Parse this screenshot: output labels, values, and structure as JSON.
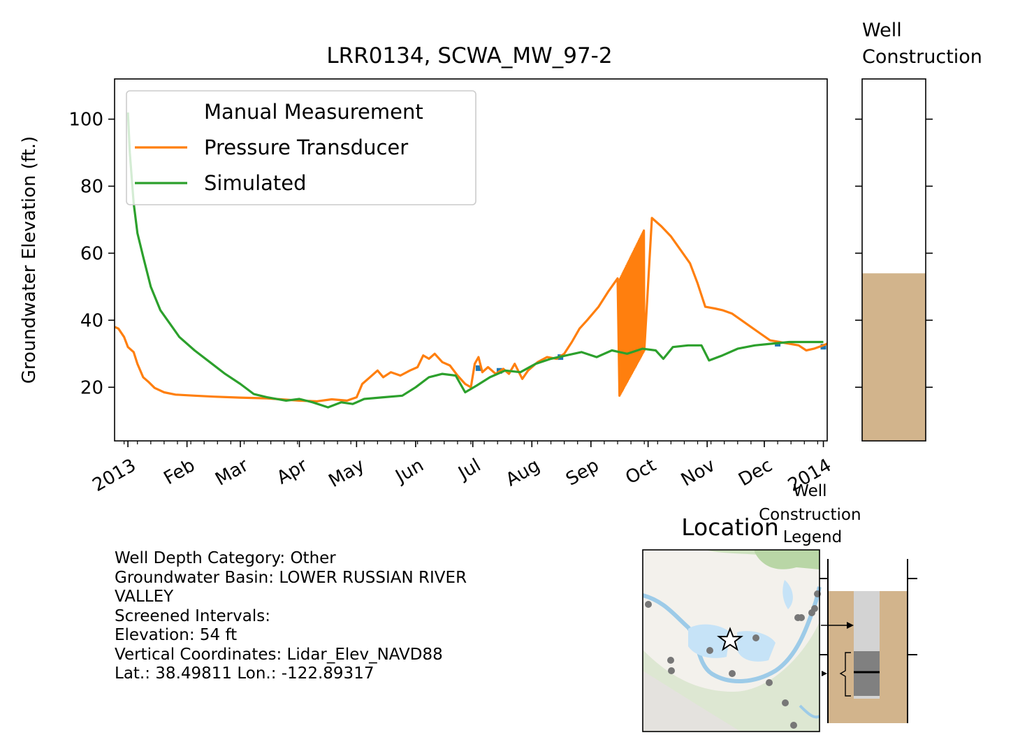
{
  "chart_data": {
    "type": "line",
    "title": "LRR0134, SCWA_MW_97-2",
    "ylabel": "Groundwater Elevation (ft.)",
    "ylim": [
      4,
      112
    ],
    "yticks": [
      20,
      40,
      60,
      80,
      100
    ],
    "xlim": [
      "2012-12-25",
      "2014-01-03"
    ],
    "x_tick_labels": [
      {
        "date": "2013-01-01",
        "label": "2013"
      },
      {
        "date": "2013-02-01",
        "label": "Feb"
      },
      {
        "date": "2013-03-01",
        "label": "Mar"
      },
      {
        "date": "2013-04-01",
        "label": "Apr"
      },
      {
        "date": "2013-05-01",
        "label": "May"
      },
      {
        "date": "2013-06-01",
        "label": "Jun"
      },
      {
        "date": "2013-07-01",
        "label": "Jul"
      },
      {
        "date": "2013-08-01",
        "label": "Aug"
      },
      {
        "date": "2013-09-01",
        "label": "Sep"
      },
      {
        "date": "2013-10-01",
        "label": "Oct"
      },
      {
        "date": "2013-11-01",
        "label": "Nov"
      },
      {
        "date": "2013-12-01",
        "label": "Dec"
      },
      {
        "date": "2014-01-01",
        "label": "2014"
      }
    ],
    "legend_location": "upper-left",
    "series": [
      {
        "name": "Manual Measurement",
        "kind": "markers",
        "color": "#1f77b4",
        "points": [
          [
            "2013-07-04",
            25.7
          ],
          [
            "2013-07-15",
            24.9
          ],
          [
            "2013-08-16",
            29.0
          ],
          [
            "2013-09-28",
            32.8
          ],
          [
            "2013-12-08",
            33.0
          ],
          [
            "2014-01-01",
            32.1
          ]
        ]
      },
      {
        "name": "Pressure Transducer",
        "kind": "line",
        "color": "#ff7f0e",
        "points": [
          [
            "2012-12-25",
            38.0
          ],
          [
            "2012-12-27",
            37.5
          ],
          [
            "2012-12-30",
            35.0
          ],
          [
            "2013-01-01",
            32.0
          ],
          [
            "2013-01-04",
            30.5
          ],
          [
            "2013-01-06",
            27.0
          ],
          [
            "2013-01-09",
            23.0
          ],
          [
            "2013-01-12",
            21.5
          ],
          [
            "2013-01-15",
            19.8
          ],
          [
            "2013-01-20",
            18.5
          ],
          [
            "2013-01-26",
            17.8
          ],
          [
            "2013-02-05",
            17.5
          ],
          [
            "2013-02-15",
            17.2
          ],
          [
            "2013-03-01",
            16.9
          ],
          [
            "2013-03-15",
            16.7
          ],
          [
            "2013-04-01",
            16.0
          ],
          [
            "2013-04-10",
            15.8
          ],
          [
            "2013-04-18",
            16.4
          ],
          [
            "2013-04-26",
            16.0
          ],
          [
            "2013-05-01",
            17.0
          ],
          [
            "2013-05-04",
            21.0
          ],
          [
            "2013-05-08",
            23.0
          ],
          [
            "2013-05-12",
            25.0
          ],
          [
            "2013-05-15",
            23.0
          ],
          [
            "2013-05-19",
            24.5
          ],
          [
            "2013-05-24",
            23.5
          ],
          [
            "2013-05-29",
            25.0
          ],
          [
            "2013-06-02",
            26.0
          ],
          [
            "2013-06-05",
            29.5
          ],
          [
            "2013-06-08",
            28.5
          ],
          [
            "2013-06-11",
            30.0
          ],
          [
            "2013-06-15",
            27.5
          ],
          [
            "2013-06-19",
            26.5
          ],
          [
            "2013-06-23",
            23.5
          ],
          [
            "2013-06-27",
            21.0
          ],
          [
            "2013-06-30",
            20.0
          ],
          [
            "2013-07-02",
            27.0
          ],
          [
            "2013-07-04",
            29.0
          ],
          [
            "2013-07-06",
            24.5
          ],
          [
            "2013-07-09",
            26.0
          ],
          [
            "2013-07-13",
            24.0
          ],
          [
            "2013-07-17",
            25.5
          ],
          [
            "2013-07-20",
            24.0
          ],
          [
            "2013-07-23",
            27.0
          ],
          [
            "2013-07-27",
            22.5
          ],
          [
            "2013-07-30",
            25.0
          ],
          [
            "2013-08-04",
            27.5
          ],
          [
            "2013-08-09",
            29.0
          ],
          [
            "2013-08-14",
            28.5
          ],
          [
            "2013-08-18",
            30.0
          ],
          [
            "2013-08-22",
            33.5
          ],
          [
            "2013-08-26",
            37.5
          ],
          [
            "2013-08-30",
            40.0
          ],
          [
            "2013-09-05",
            44.0
          ],
          [
            "2013-09-10",
            48.5
          ],
          [
            "2013-09-15",
            52.5
          ],
          [
            "2013-09-18",
            55.0
          ],
          [
            "2013-09-28",
            74.0
          ],
          [
            "2013-10-03",
            70.5
          ],
          [
            "2013-10-08",
            68.0
          ],
          [
            "2013-10-13",
            65.0
          ],
          [
            "2013-10-18",
            61.0
          ],
          [
            "2013-10-23",
            57.0
          ],
          [
            "2013-10-27",
            51.0
          ],
          [
            "2013-10-31",
            44.0
          ],
          [
            "2013-11-05",
            43.5
          ],
          [
            "2013-11-09",
            43.0
          ],
          [
            "2013-11-14",
            42.0
          ],
          [
            "2013-11-19",
            40.0
          ],
          [
            "2013-11-24",
            38.0
          ],
          [
            "2013-11-29",
            36.0
          ],
          [
            "2013-12-04",
            34.0
          ],
          [
            "2013-12-09",
            33.5
          ],
          [
            "2013-12-14",
            33.0
          ],
          [
            "2013-12-19",
            32.5
          ],
          [
            "2013-12-23",
            31.0
          ],
          [
            "2013-12-27",
            31.5
          ],
          [
            "2014-01-01",
            32.5
          ],
          [
            "2014-01-03",
            33.0
          ]
        ],
        "oscillation": {
          "start": "2013-09-16",
          "end": "2013-09-29",
          "low_start": 17.5,
          "low_end": 31.0,
          "high_start": 52.0,
          "high_end": 67.0,
          "note": "rapid oscillation segment"
        }
      },
      {
        "name": "Simulated",
        "kind": "line",
        "color": "#2ca02c",
        "points": [
          [
            "2013-01-01",
            102.0
          ],
          [
            "2013-01-02",
            90.0
          ],
          [
            "2013-01-04",
            75.0
          ],
          [
            "2013-01-06",
            66.0
          ],
          [
            "2013-01-09",
            59.0
          ],
          [
            "2013-01-13",
            50.0
          ],
          [
            "2013-01-18",
            43.0
          ],
          [
            "2013-01-23",
            39.0
          ],
          [
            "2013-01-28",
            35.0
          ],
          [
            "2013-02-05",
            31.0
          ],
          [
            "2013-02-13",
            27.5
          ],
          [
            "2013-02-21",
            24.0
          ],
          [
            "2013-03-01",
            21.0
          ],
          [
            "2013-03-08",
            18.0
          ],
          [
            "2013-03-15",
            17.0
          ],
          [
            "2013-03-25",
            16.0
          ],
          [
            "2013-04-01",
            16.5
          ],
          [
            "2013-04-08",
            15.5
          ],
          [
            "2013-04-16",
            14.0
          ],
          [
            "2013-04-23",
            15.5
          ],
          [
            "2013-04-29",
            15.0
          ],
          [
            "2013-05-05",
            16.5
          ],
          [
            "2013-05-15",
            17.0
          ],
          [
            "2013-05-25",
            17.5
          ],
          [
            "2013-06-01",
            20.0
          ],
          [
            "2013-06-08",
            23.0
          ],
          [
            "2013-06-15",
            24.0
          ],
          [
            "2013-06-22",
            23.5
          ],
          [
            "2013-06-27",
            18.5
          ],
          [
            "2013-07-03",
            20.5
          ],
          [
            "2013-07-10",
            23.0
          ],
          [
            "2013-07-18",
            25.0
          ],
          [
            "2013-07-26",
            24.5
          ],
          [
            "2013-08-03",
            27.0
          ],
          [
            "2013-08-11",
            28.5
          ],
          [
            "2013-08-19",
            29.5
          ],
          [
            "2013-08-27",
            30.5
          ],
          [
            "2013-09-04",
            29.0
          ],
          [
            "2013-09-12",
            31.0
          ],
          [
            "2013-09-20",
            30.0
          ],
          [
            "2013-09-28",
            31.5
          ],
          [
            "2013-10-05",
            31.0
          ],
          [
            "2013-10-09",
            28.5
          ],
          [
            "2013-10-14",
            32.0
          ],
          [
            "2013-10-22",
            32.5
          ],
          [
            "2013-10-29",
            32.5
          ],
          [
            "2013-11-02",
            28.0
          ],
          [
            "2013-11-09",
            29.5
          ],
          [
            "2013-11-17",
            31.5
          ],
          [
            "2013-11-26",
            32.5
          ],
          [
            "2013-12-05",
            33.0
          ],
          [
            "2013-12-14",
            33.5
          ],
          [
            "2013-12-23",
            33.5
          ],
          [
            "2014-01-01",
            33.5
          ]
        ]
      }
    ]
  },
  "well_panel": {
    "title": "Well\nConstruction",
    "ground_fill_level": 54,
    "colors": {
      "ground": "#d2b48c"
    }
  },
  "location_panel": {
    "title": "Location",
    "legend_title": "Well\nConstruction\nLegend"
  },
  "info": {
    "lines": [
      "Well Depth Category: Other",
      "Groundwater Basin: LOWER RUSSIAN RIVER",
      "VALLEY",
      "Screened Intervals:",
      "Elevation: 54 ft",
      "Vertical Coordinates: Lidar_Elev_NAVD88",
      "Lat.: 38.49811 Lon.: -122.89317"
    ]
  }
}
